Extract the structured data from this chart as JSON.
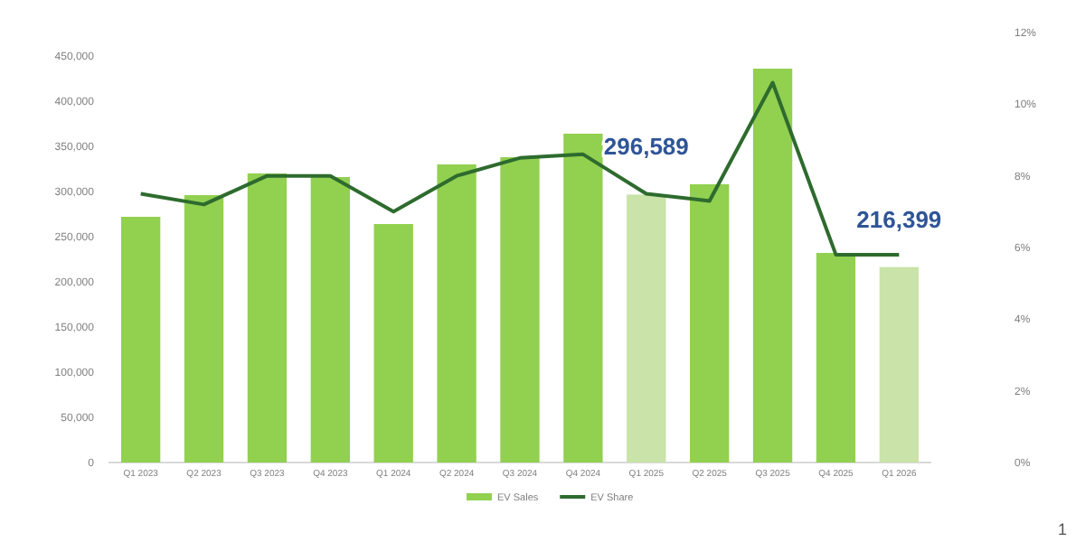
{
  "chart_data": {
    "type": "bar",
    "categories": [
      "Q1 2023",
      "Q2 2023",
      "Q3 2023",
      "Q4 2023",
      "Q1 2024",
      "Q2 2024",
      "Q3 2024",
      "Q4 2024",
      "Q1 2025",
      "Q2 2025",
      "Q3 2025",
      "Q4 2025",
      "Q1 2026"
    ],
    "series": [
      {
        "name": "EV Sales",
        "color": "#92d050",
        "colors": [
          "#92d050",
          "#92d050",
          "#92d050",
          "#92d050",
          "#92d050",
          "#92d050",
          "#92d050",
          "#92d050",
          "#c9e3a8",
          "#92d050",
          "#92d050",
          "#92d050",
          "#c9e3a8"
        ],
        "values": [
          272000,
          296000,
          320000,
          316000,
          264000,
          330000,
          338000,
          364000,
          296589,
          308000,
          436000,
          232000,
          216399
        ],
        "value_labels": [
          null,
          null,
          null,
          null,
          null,
          null,
          null,
          null,
          "296,589",
          null,
          null,
          null,
          "216,399"
        ]
      },
      {
        "name": "EV Share",
        "type": "line",
        "axis": "y2",
        "color": "#2e6b2e",
        "values": [
          7.5,
          7.2,
          8.0,
          8.0,
          7.0,
          8.0,
          8.5,
          8.6,
          7.5,
          7.3,
          10.6,
          5.8,
          5.8
        ]
      }
    ],
    "ylim": [
      0,
      450000
    ],
    "yticks": [
      {
        "value": 0,
        "label": "0"
      },
      {
        "value": 50000,
        "label": "50,000"
      },
      {
        "value": 100000,
        "label": "100,000"
      },
      {
        "value": 150000,
        "label": "150,000"
      },
      {
        "value": 200000,
        "label": "200,000"
      },
      {
        "value": 250000,
        "label": "250,000"
      },
      {
        "value": 300000,
        "label": "300,000"
      },
      {
        "value": 350000,
        "label": "350,000"
      },
      {
        "value": 400000,
        "label": "400,000"
      },
      {
        "value": 450000,
        "label": "450,000"
      }
    ],
    "y2lim": [
      0,
      12
    ],
    "y2ticks": [
      {
        "value": 0,
        "label": "0%"
      },
      {
        "value": 2,
        "label": "2%"
      },
      {
        "value": 4,
        "label": "4%"
      },
      {
        "value": 6,
        "label": "6%"
      },
      {
        "value": 8,
        "label": "8%"
      },
      {
        "value": 10,
        "label": "10%"
      },
      {
        "value": 12,
        "label": "12%"
      }
    ],
    "annotations": [
      "1"
    ],
    "legend": "bottom",
    "grid": false,
    "marker": "none",
    "line_style": "solid"
  }
}
